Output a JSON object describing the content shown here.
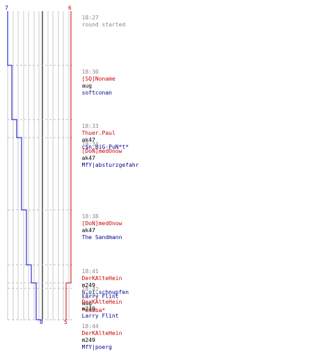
{
  "colors": {
    "red_team": "#cc0000",
    "blue_team": "#0000cc",
    "grid": "#c8c8c8",
    "center_line": "#777777",
    "dash": "#bbbbbb",
    "time_text": "#888888"
  },
  "corner_labels": {
    "top_left": "7",
    "top_right": "6",
    "bottom_left": "0",
    "bottom_right": "5"
  },
  "chart_data": {
    "type": "line",
    "series": [
      {
        "values": [
          7,
          6,
          5,
          4,
          3,
          2,
          1,
          0
        ]
      },
      {
        "values": [
          6,
          5
        ]
      }
    ]
  },
  "events": [
    {
      "time": "18:27",
      "text": "round started",
      "killer": "",
      "weapon": "",
      "victim": ""
    },
    {
      "time": "18:30",
      "killer": "[SQ]Noname",
      "weapon": "aug",
      "victim": "softconan"
    },
    {
      "time": "18:33",
      "killer": "Thuer.Paul",
      "weapon": "ak47",
      "victim": "c$n.BiG-PuN*t*"
    },
    {
      "time": "18:34",
      "killer": "[DoN]medOnow",
      "weapon": "ak47",
      "victim": "MfY|absturzgefahr"
    },
    {
      "time": "18:38",
      "killer": "[DoN]medOnow",
      "weapon": "ak47",
      "victim": "The Sandmann"
    },
    {
      "time": "18:41",
      "killer": "DerKAlteHein",
      "weapon": "m249",
      "victim": "h.oi.schnupfen"
    },
    {
      "time": "18:42",
      "killer": "Larry Flint",
      "weapon": "aug",
      "victim": "*babba*"
    },
    {
      "time": "18:42",
      "killer": "DerKAlteHein",
      "weapon": "m249",
      "victim": "Larry Flint"
    },
    {
      "time": "18:44",
      "killer": "DerKAlteHein",
      "weapon": "m249",
      "victim": "MfY|poerg"
    }
  ]
}
